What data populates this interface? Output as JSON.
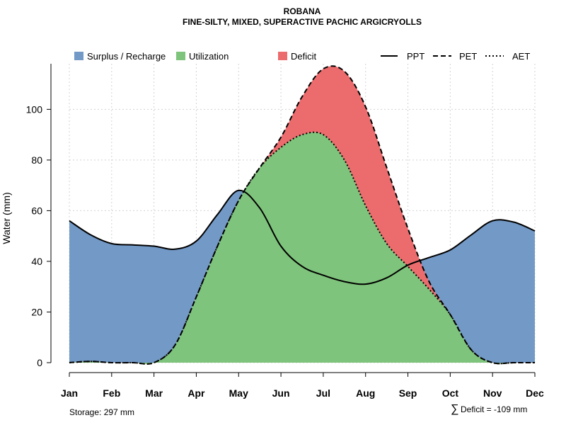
{
  "chart_data": {
    "type": "area",
    "title": "ROBANA",
    "subtitle": "FINE-SILTY, MIXED, SUPERACTIVE PACHIC ARGICRYOLLS",
    "ylabel": "Water (mm)",
    "xlabel": "",
    "ylim": [
      0,
      118
    ],
    "yticks": [
      0,
      20,
      40,
      60,
      80,
      100
    ],
    "grid": true,
    "legend_position": "top",
    "categories": [
      "Jan",
      "Feb",
      "Mar",
      "Apr",
      "May",
      "Jun",
      "Jul",
      "Aug",
      "Sep",
      "Oct",
      "Nov",
      "Dec"
    ],
    "x": [
      1,
      1.5,
      2,
      2.5,
      3,
      3.5,
      4,
      4.5,
      5,
      5.5,
      6,
      6.5,
      7,
      7.5,
      8,
      8.5,
      9,
      9.5,
      10,
      10.5,
      11,
      11.5,
      12
    ],
    "series": [
      {
        "name": "PPT",
        "style": "solid",
        "values": [
          56,
          50.5,
          47,
          46.5,
          46,
          44.8,
          48,
          58.5,
          68,
          61,
          46,
          38,
          34.5,
          32,
          31,
          33.5,
          38.5,
          41.5,
          44.5,
          50.5,
          56,
          55.5,
          52
        ]
      },
      {
        "name": "PET",
        "style": "dashed",
        "values": [
          0,
          0.5,
          0,
          0,
          0,
          7,
          26,
          46,
          64,
          77,
          89,
          105,
          116,
          115,
          101,
          77,
          53,
          32,
          19,
          5,
          0,
          0,
          0
        ]
      },
      {
        "name": "AET",
        "style": "dotted",
        "values": [
          0,
          0.5,
          0,
          0,
          0,
          7,
          26,
          46,
          64,
          77,
          85,
          90,
          90,
          80,
          62,
          47,
          38,
          29,
          19,
          5,
          0,
          0,
          0
        ]
      }
    ],
    "areas": [
      {
        "name": "Surplus / Recharge",
        "color": "#7399c6"
      },
      {
        "name": "Utilization",
        "color": "#7fc47c"
      },
      {
        "name": "Deficit",
        "color": "#ec6c6e"
      }
    ],
    "annotations": {
      "storage": "Storage: 297 mm",
      "deficit_symbol": "∑",
      "deficit": "Deficit = -109 mm"
    }
  }
}
